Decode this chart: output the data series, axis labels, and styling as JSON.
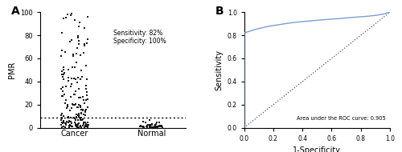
{
  "panel_A": {
    "label": "A",
    "ylabel": "PMR",
    "categories": [
      "Cancer",
      "Normal"
    ],
    "threshold": 9,
    "ylim": [
      0,
      100
    ],
    "yticks": [
      0,
      20,
      40,
      60,
      80,
      100
    ],
    "annotation": "Sensitivity: 82%\nSpecificity: 100%",
    "dot_color": "#1a1a1a",
    "dot_size": 4
  },
  "panel_B": {
    "label": "B",
    "xlabel": "1-Specificity",
    "ylabel": "Sensitivity",
    "auc_text": "Area under the ROC curve: 0.905",
    "roc_color": "#7b9fd4",
    "diag_color": "#555555",
    "xlim": [
      0,
      1
    ],
    "ylim": [
      0,
      1
    ],
    "xticks": [
      0.0,
      0.2,
      0.4,
      0.6,
      0.8,
      1.0
    ],
    "yticks": [
      0.0,
      0.2,
      0.4,
      0.6,
      0.8,
      1.0
    ]
  },
  "background_color": "#ffffff",
  "font_family": "Arial"
}
